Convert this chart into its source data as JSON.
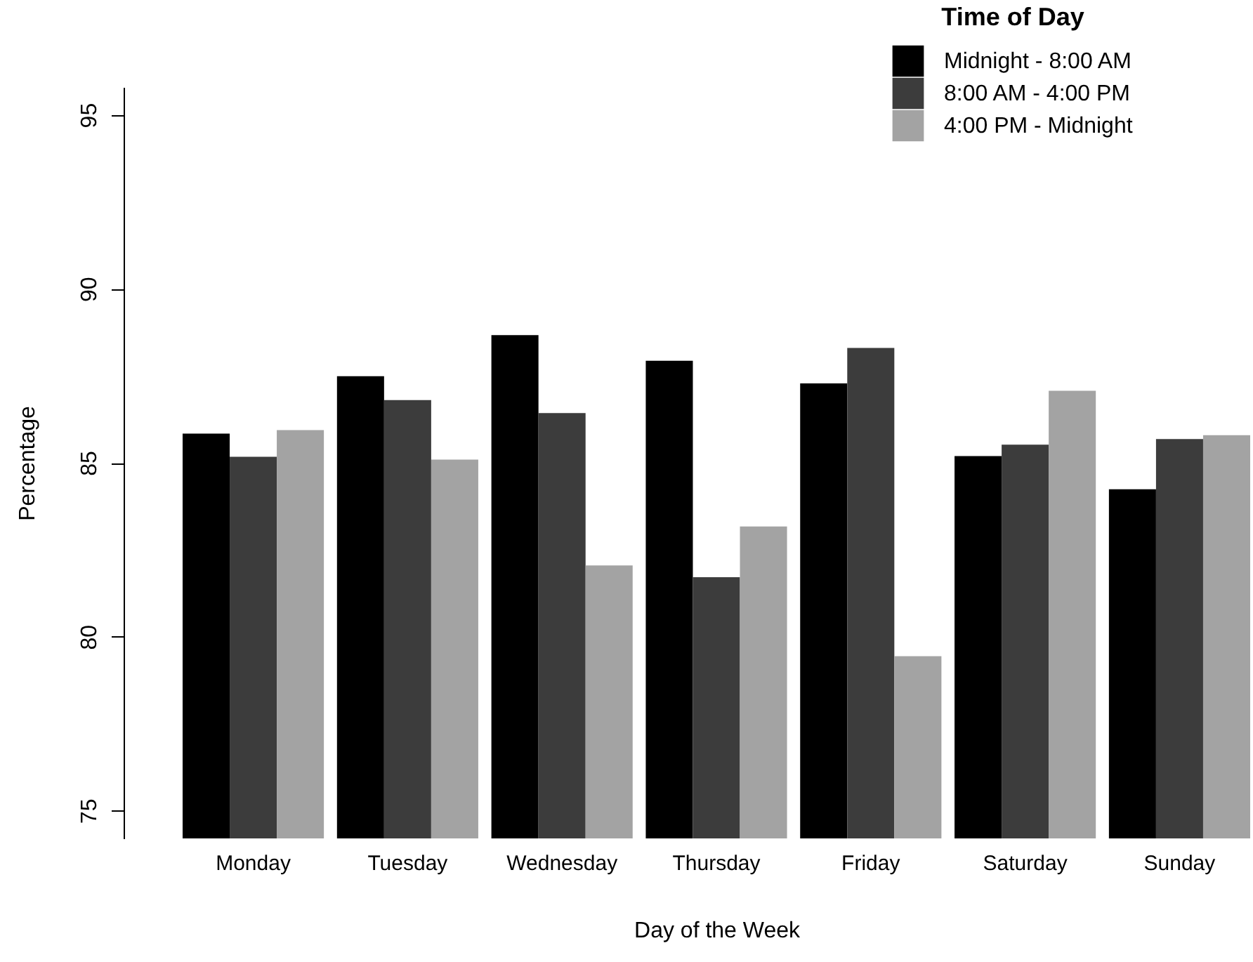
{
  "chart_data": {
    "type": "bar",
    "xlabel": "Day of the Week",
    "ylabel": "Percentage",
    "legend_title": "Time of Day",
    "categories": [
      "Monday",
      "Tuesday",
      "Wednesday",
      "Thursday",
      "Friday",
      "Saturday",
      "Sunday"
    ],
    "series": [
      {
        "name": "Midnight - 8:00 AM",
        "color": "#000000",
        "values": [
          85.84,
          87.49,
          88.67,
          87.93,
          87.28,
          85.19,
          84.24
        ]
      },
      {
        "name": "8:00 AM - 4:00 PM",
        "color": "#3c3c3c",
        "values": [
          85.17,
          86.8,
          86.43,
          81.71,
          88.3,
          85.52,
          85.68
        ]
      },
      {
        "name": "4:00 PM - Midnight",
        "color": "#a3a3a3",
        "values": [
          85.94,
          85.09,
          82.05,
          83.17,
          79.44,
          87.07,
          85.79
        ]
      }
    ],
    "ylim": [
      74.2,
      95.8
    ],
    "yticks": [
      75,
      80,
      85,
      90,
      95
    ],
    "grid": false,
    "legend": "top right"
  }
}
